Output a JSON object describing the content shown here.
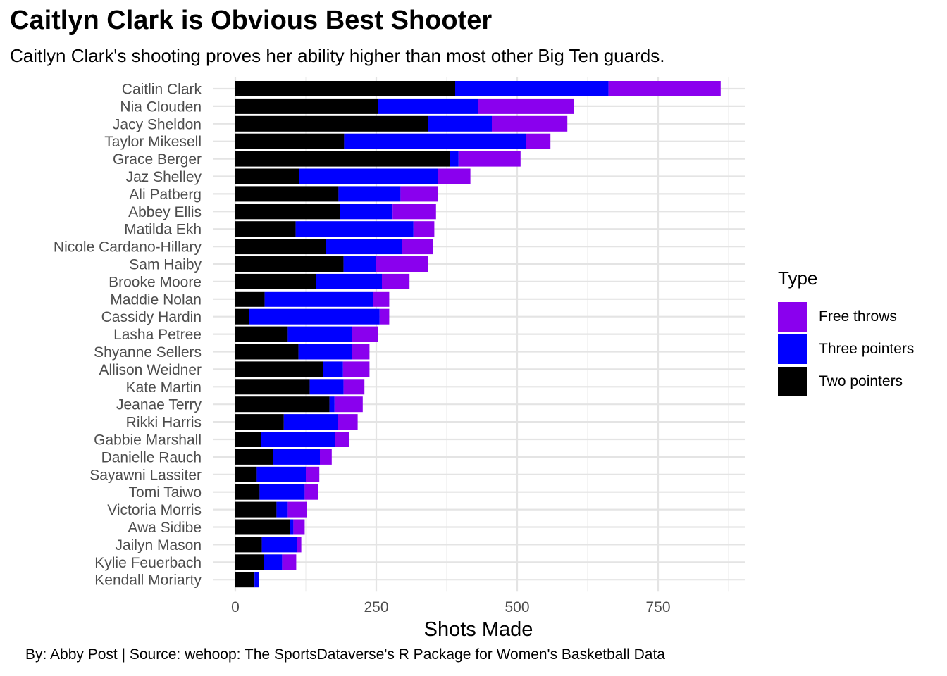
{
  "header": {
    "title": "Caitlyn Clark is Obvious Best Shooter",
    "subtitle": "Caitlyn Clark's shooting proves her ability higher than most other Big Ten guards."
  },
  "caption": "By: Abby Post  | Source: wehoop: The SportsDataverse's R Package for Women's Basketball Data",
  "legend": {
    "title": "Type",
    "items": [
      {
        "label": "Free throws",
        "color": "#8A00EE"
      },
      {
        "label": "Three pointers",
        "color": "#0000FF"
      },
      {
        "label": "Two pointers",
        "color": "#000000"
      }
    ]
  },
  "chart_data": {
    "type": "bar",
    "orientation": "horizontal",
    "stacked": true,
    "title": "Caitlyn Clark is Obvious Best Shooter",
    "subtitle": "Caitlyn Clark's shooting proves her ability higher than most other Big Ten guards.",
    "xlabel": "Shots Made",
    "ylabel": "",
    "xlim": [
      0,
      900
    ],
    "xticks": [
      0,
      250,
      500,
      750
    ],
    "xtick_labels": [
      "0",
      "250",
      "500",
      "750"
    ],
    "grid": true,
    "legend_position": "right",
    "categories": [
      "Caitlin Clark",
      "Nia Clouden",
      "Jacy Sheldon",
      "Taylor Mikesell",
      "Grace Berger",
      "Jaz Shelley",
      "Ali Patberg",
      "Abbey Ellis",
      "Matilda Ekh",
      "Nicole Cardano-Hillary",
      "Sam Haiby",
      "Brooke Moore",
      "Maddie Nolan",
      "Cassidy Hardin",
      "Lasha Petree",
      "Shyanne Sellers",
      "Allison Weidner",
      "Kate Martin",
      "Jeanae Terry",
      "Rikki Harris",
      "Gabbie Marshall",
      "Danielle Rauch",
      "Sayawni Lassiter",
      "Tomi Taiwo",
      "Victoria Morris",
      "Awa Sidibe",
      "Jailyn Mason",
      "Kylie Feuerbach",
      "Kendall Moriarty"
    ],
    "series": [
      {
        "name": "Two pointers",
        "color": "#000000",
        "values": [
          390,
          253,
          342,
          193,
          380,
          113,
          183,
          186,
          107,
          160,
          192,
          143,
          52,
          24,
          93,
          112,
          155,
          132,
          167,
          86,
          46,
          67,
          38,
          43,
          73,
          97,
          47,
          50,
          34
        ]
      },
      {
        "name": "Three pointers",
        "color": "#0000FF",
        "values": [
          272,
          178,
          113,
          322,
          16,
          246,
          110,
          93,
          209,
          135,
          57,
          117,
          192,
          232,
          114,
          95,
          36,
          60,
          9,
          96,
          131,
          83,
          87,
          80,
          20,
          6,
          62,
          33,
          8
        ]
      },
      {
        "name": "Free throws",
        "color": "#8A00EE",
        "values": [
          199,
          170,
          134,
          44,
          110,
          58,
          67,
          77,
          37,
          56,
          93,
          49,
          29,
          17,
          46,
          31,
          47,
          37,
          50,
          35,
          25,
          21,
          24,
          24,
          34,
          20,
          8,
          25,
          0
        ]
      }
    ]
  }
}
